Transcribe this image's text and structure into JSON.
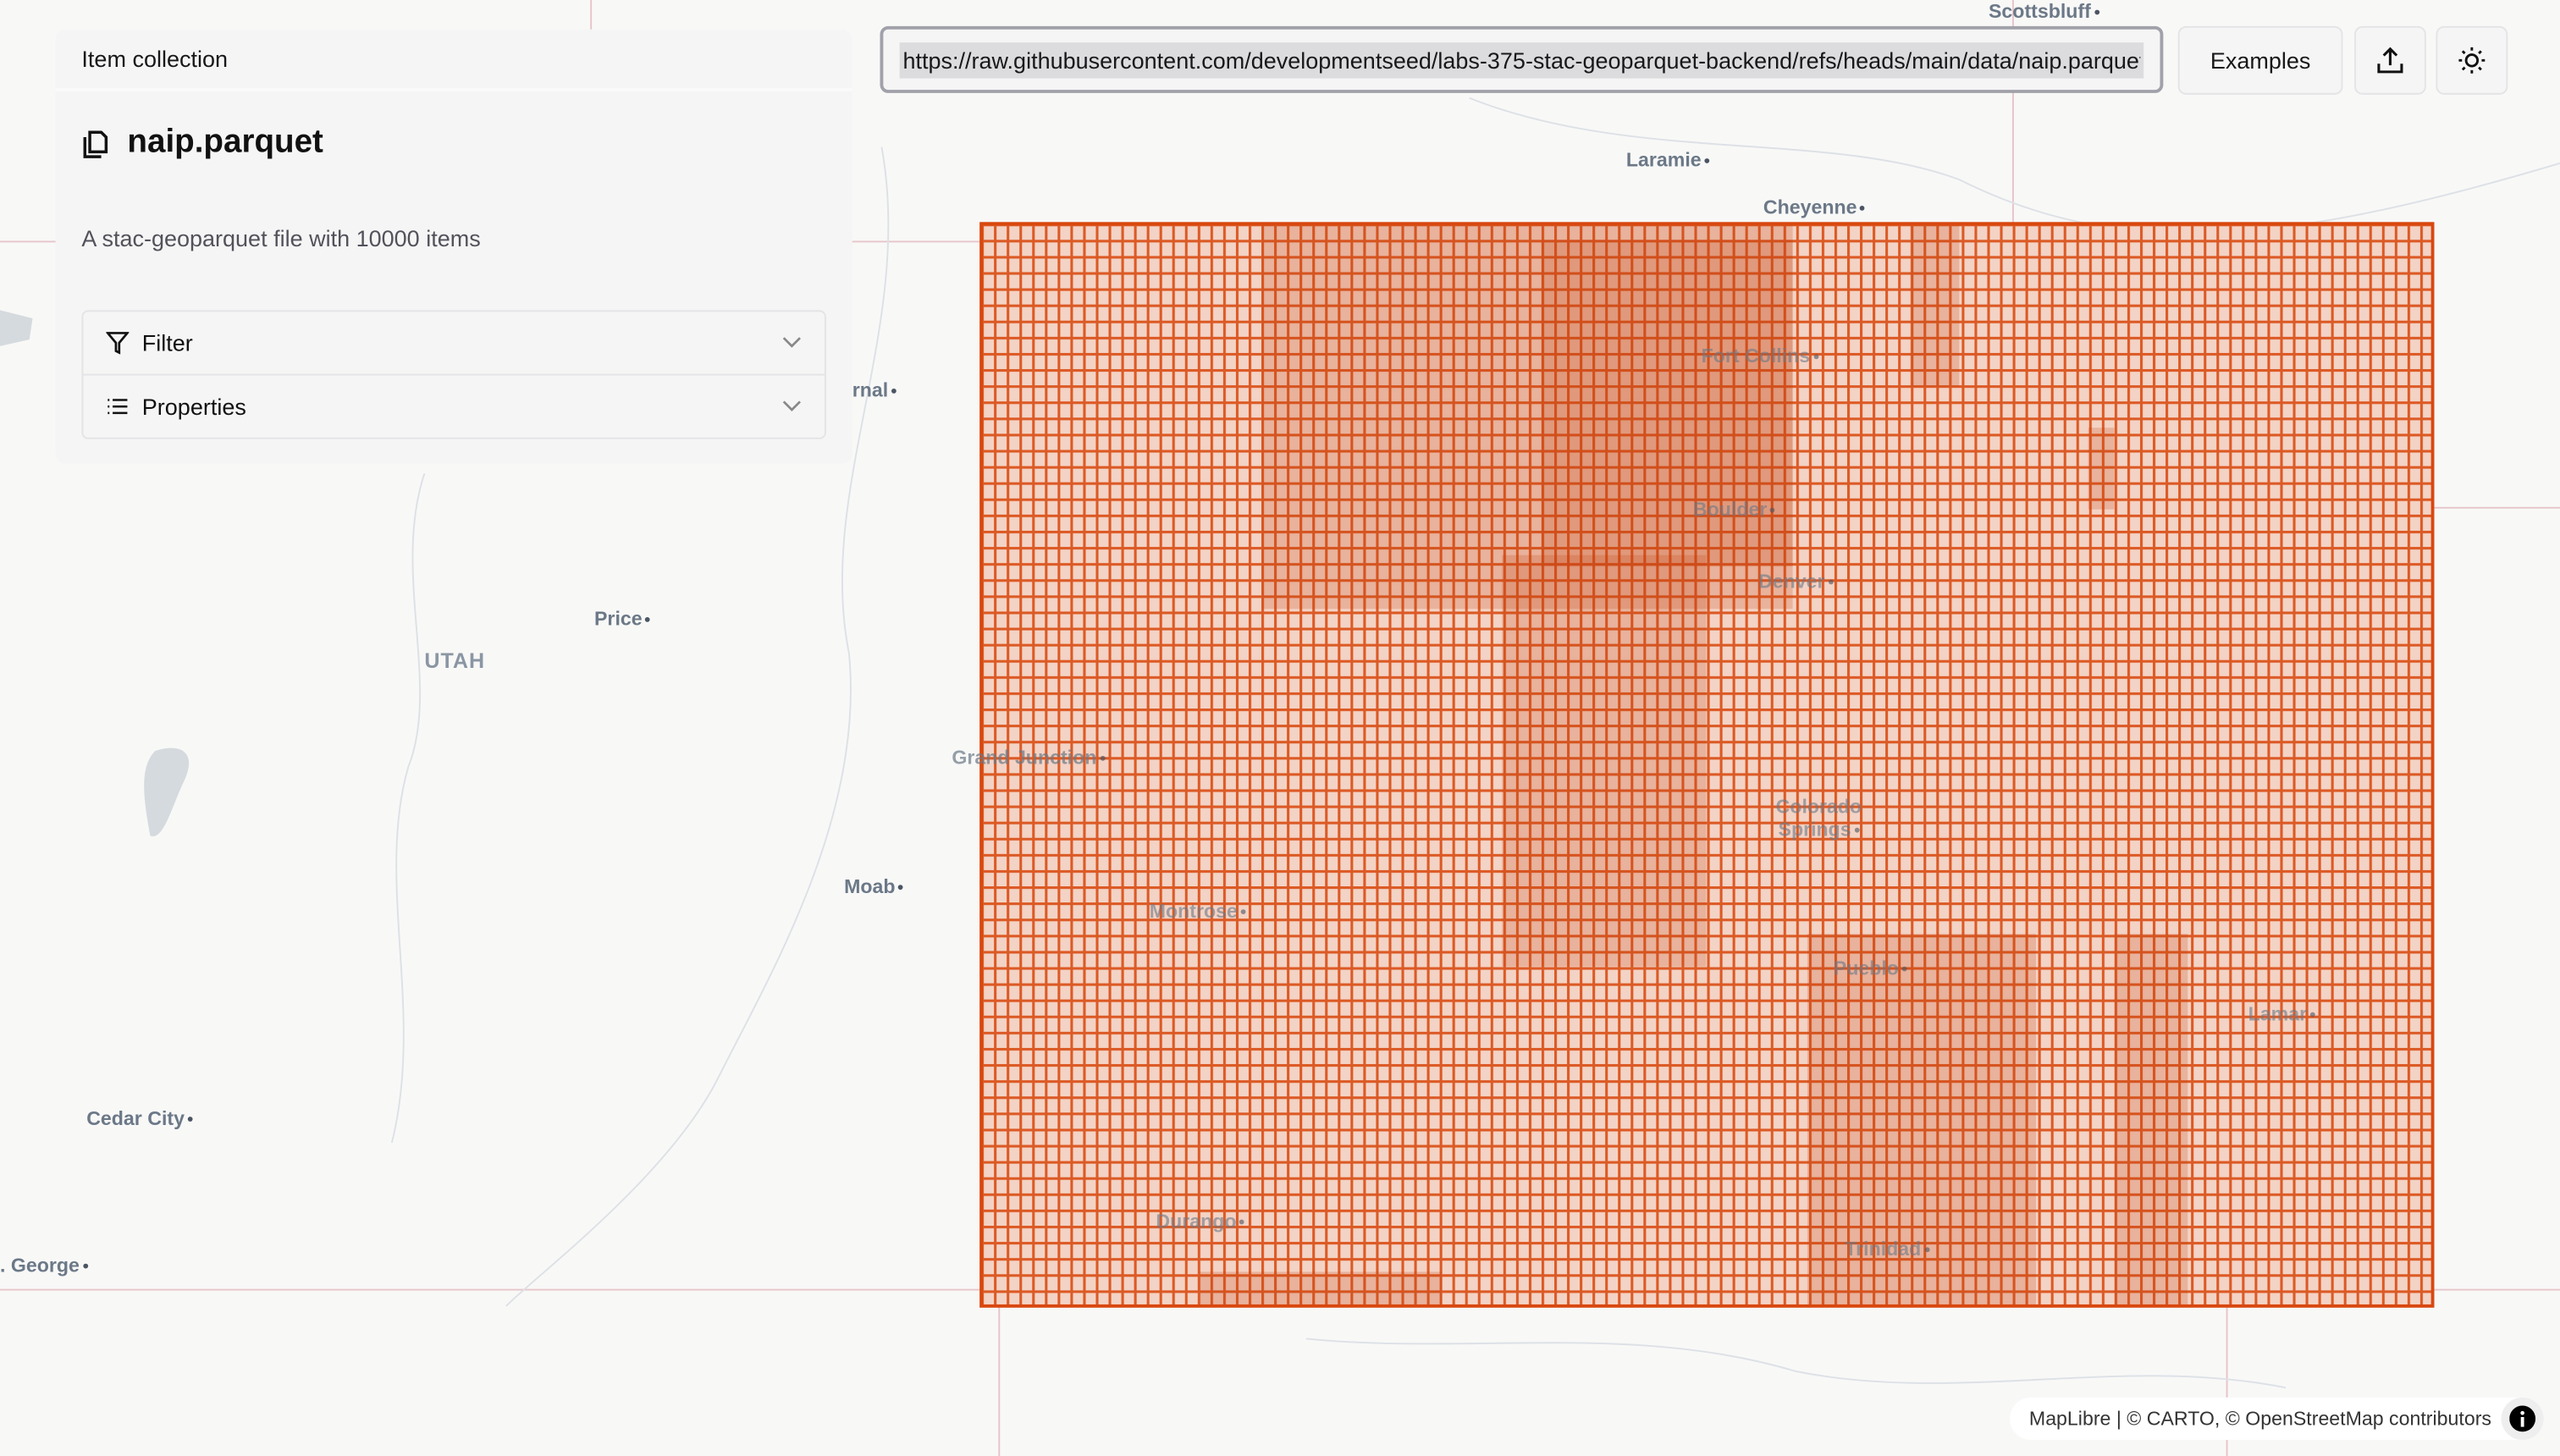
{
  "panel": {
    "header": "Item collection",
    "title": "naip.parquet",
    "title_icon": "files-icon",
    "description": "A stac-geoparquet file with 10000 items",
    "sections": [
      {
        "label": "Filter",
        "icon": "filter-icon"
      },
      {
        "label": "Properties",
        "icon": "list-icon"
      }
    ]
  },
  "toolbar": {
    "url_value": "https://raw.githubusercontent.com/developmentseed/labs-375-stac-geoparquet-backend/refs/heads/main/data/naip.parquet",
    "examples_label": "Examples",
    "upload_icon": "upload-icon",
    "theme_icon": "sun-icon"
  },
  "map": {
    "cities": [
      "Scottsbluff",
      "Laramie",
      "Cheyenne",
      "Fort Collins",
      "Boulder",
      "Denver",
      "Vernal",
      "Price",
      "Grand Junction",
      "Colorado Springs",
      "Moab",
      "Montrose",
      "Pueblo",
      "Lamar",
      "Cedar City",
      "Durango",
      "Trinidad",
      "St. George"
    ],
    "state_labels": [
      "UTAH"
    ],
    "footprint_color": "#d9480f",
    "attribution": "MapLibre | © CARTO, © OpenStreetMap contributors"
  }
}
